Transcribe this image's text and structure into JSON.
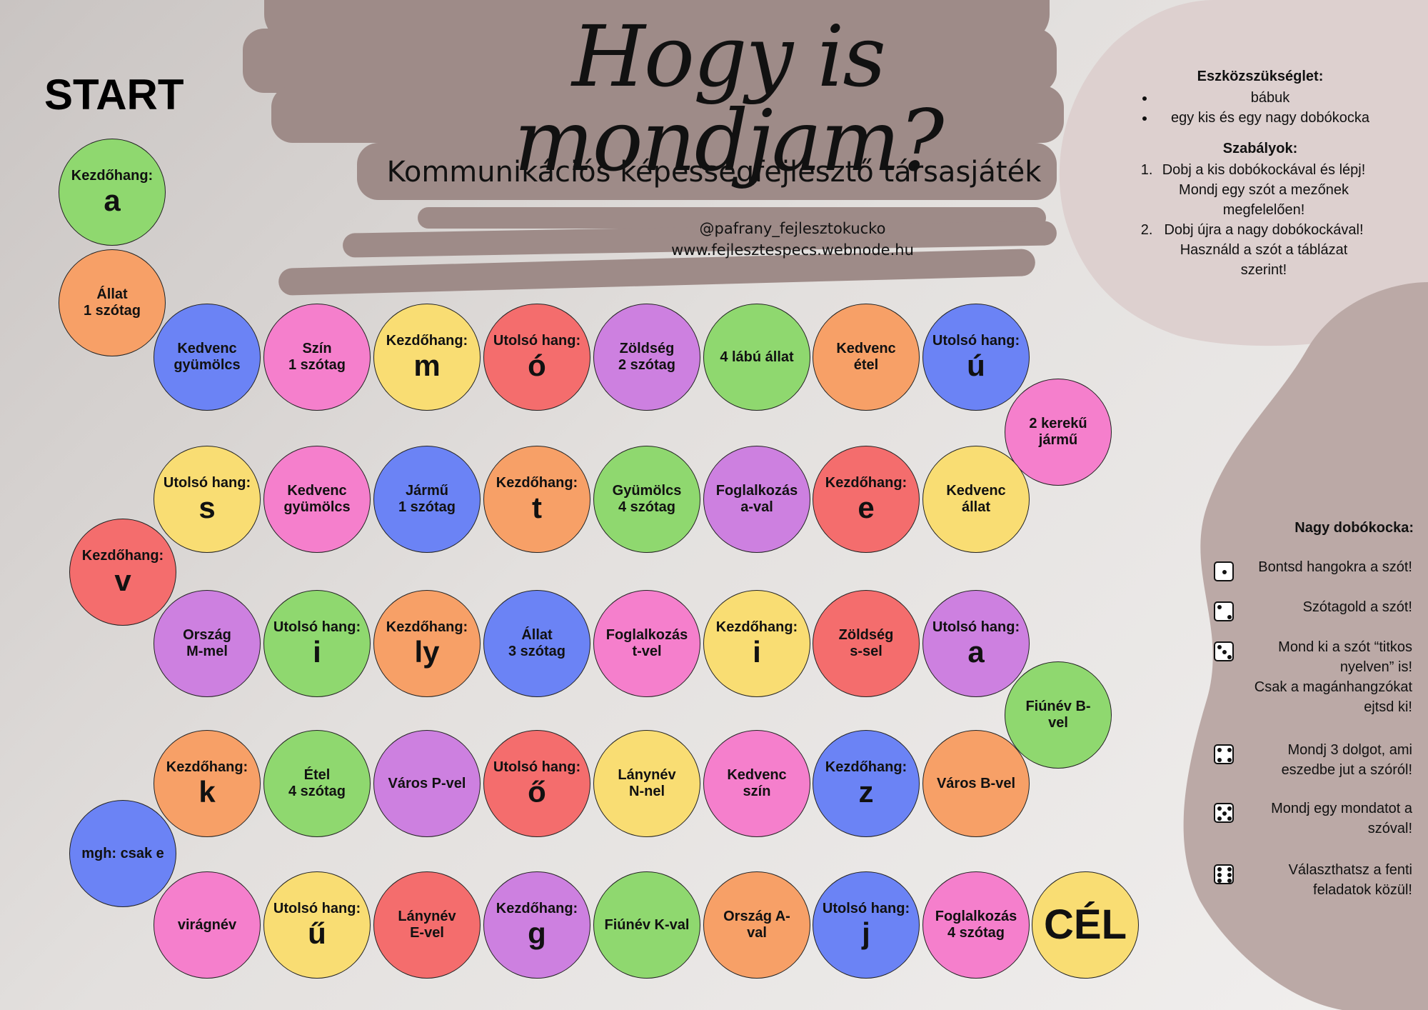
{
  "title": "Hogy is mondjam?",
  "subtitle": "Kommunikációs képességfejlesztő társasjáték",
  "contact": {
    "handle": "@pafrany_fejlesztokucko",
    "website": "www.fejlesztespecs.webnode.hu"
  },
  "start_label": "START",
  "colors": {
    "green": "#8fd86f",
    "orange": "#f7a067",
    "blue": "#6b83f5",
    "pink": "#f57fcc",
    "yellow": "#f9dd73",
    "red": "#f46d6d",
    "purple": "#cd80e0",
    "stroke": "#9e8b88",
    "blob_light": "#ddd0cf",
    "blob_dark": "#bba9a6"
  },
  "board": [
    {
      "lines": [
        "Kezdőhang:"
      ],
      "big": "a",
      "color": "green"
    },
    {
      "lines": [
        "Állat",
        "1 szótag"
      ],
      "color": "orange"
    },
    {
      "lines": [
        "Kedvenc",
        "gyümölcs"
      ],
      "color": "blue"
    },
    {
      "lines": [
        "Szín",
        "1 szótag"
      ],
      "color": "pink"
    },
    {
      "lines": [
        "Kezdőhang:"
      ],
      "big": "m",
      "color": "yellow"
    },
    {
      "lines": [
        "Utolsó hang:"
      ],
      "big": "ó",
      "color": "red"
    },
    {
      "lines": [
        "Zöldség",
        "2 szótag"
      ],
      "color": "purple"
    },
    {
      "lines": [
        "4 lábú állat"
      ],
      "color": "green"
    },
    {
      "lines": [
        "Kedvenc",
        "étel"
      ],
      "color": "orange"
    },
    {
      "lines": [
        "Utolsó hang:"
      ],
      "big": "ú",
      "color": "blue"
    },
    {
      "lines": [
        "2 kerekű",
        "jármű"
      ],
      "color": "pink"
    },
    {
      "lines": [
        "Kedvenc",
        "állat"
      ],
      "color": "yellow"
    },
    {
      "lines": [
        "Kezdőhang:"
      ],
      "big": "e",
      "color": "red"
    },
    {
      "lines": [
        "Foglalkozás",
        "a-val"
      ],
      "color": "purple"
    },
    {
      "lines": [
        "Gyümölcs",
        "4 szótag"
      ],
      "color": "green"
    },
    {
      "lines": [
        "Kezdőhang:"
      ],
      "big": "t",
      "color": "orange"
    },
    {
      "lines": [
        "Jármű",
        "1 szótag"
      ],
      "color": "blue"
    },
    {
      "lines": [
        "Kedvenc",
        "gyümölcs"
      ],
      "color": "pink"
    },
    {
      "lines": [
        "Utolsó hang:"
      ],
      "big": "s",
      "color": "yellow"
    },
    {
      "lines": [
        "Kezdőhang:"
      ],
      "big": "v",
      "color": "red"
    },
    {
      "lines": [
        "Ország",
        "M-mel"
      ],
      "color": "purple"
    },
    {
      "lines": [
        "Utolsó hang:"
      ],
      "big": "i",
      "color": "green"
    },
    {
      "lines": [
        "Kezdőhang:"
      ],
      "big": "ly",
      "color": "orange"
    },
    {
      "lines": [
        "Állat",
        "3 szótag"
      ],
      "color": "blue"
    },
    {
      "lines": [
        "Foglalkozás",
        "t-vel"
      ],
      "color": "pink"
    },
    {
      "lines": [
        "Kezdőhang:"
      ],
      "big": "i",
      "color": "yellow"
    },
    {
      "lines": [
        "Zöldség",
        "s-sel"
      ],
      "color": "red"
    },
    {
      "lines": [
        "Utolsó hang:"
      ],
      "big": "a",
      "color": "purple"
    },
    {
      "lines": [
        "Fiúnév B-",
        "vel"
      ],
      "color": "green"
    },
    {
      "lines": [
        "Város B-vel"
      ],
      "color": "orange"
    },
    {
      "lines": [
        "Kezdőhang:"
      ],
      "big": "z",
      "color": "blue"
    },
    {
      "lines": [
        "Kedvenc",
        "szín"
      ],
      "color": "pink"
    },
    {
      "lines": [
        "Lánynév",
        "N-nel"
      ],
      "color": "yellow"
    },
    {
      "lines": [
        "Utolsó hang:"
      ],
      "big": "ő",
      "color": "red"
    },
    {
      "lines": [
        "Város P-vel"
      ],
      "color": "purple"
    },
    {
      "lines": [
        "Étel",
        "4 szótag"
      ],
      "color": "green"
    },
    {
      "lines": [
        "Kezdőhang:"
      ],
      "big": "k",
      "color": "orange"
    },
    {
      "lines": [
        "mgh: csak e"
      ],
      "color": "blue"
    },
    {
      "lines": [
        "virágnév"
      ],
      "color": "pink"
    },
    {
      "lines": [
        "Utolsó hang:"
      ],
      "big": "ű",
      "color": "yellow"
    },
    {
      "lines": [
        "Lánynév",
        "E-vel"
      ],
      "color": "red"
    },
    {
      "lines": [
        "Kezdőhang:"
      ],
      "big": "g",
      "color": "purple"
    },
    {
      "lines": [
        "Fiúnév K-val"
      ],
      "color": "green"
    },
    {
      "lines": [
        "Ország A-",
        "val"
      ],
      "color": "orange"
    },
    {
      "lines": [
        "Utolsó hang:"
      ],
      "big": "j",
      "color": "blue"
    },
    {
      "lines": [
        "Foglalkozás",
        "4 szótag"
      ],
      "color": "pink"
    },
    {
      "lines": [],
      "big": "CÉL",
      "color": "yellow",
      "goal": true
    }
  ],
  "equipment": {
    "heading": "Eszközszükséglet:",
    "items": [
      "bábuk",
      "egy kis és egy nagy dobókocka"
    ]
  },
  "rules": {
    "heading": "Szabályok:",
    "items": [
      "Dobj a kis dobókockával és lépj! Mondj egy szót a mezőnek megfelelően!",
      "Dobj újra a nagy dobókockával! Használd a szót a táblázat szerint!"
    ]
  },
  "big_die": {
    "heading": "Nagy dobókocka:",
    "items": [
      {
        "pips": 1,
        "text": [
          "Bontsd hangokra a szót!"
        ]
      },
      {
        "pips": 2,
        "text": [
          "Szótagold a szót!"
        ]
      },
      {
        "pips": 3,
        "text": [
          "Mond ki a szót “titkos",
          "nyelven” is!",
          "Csak a magánhangzókat",
          "ejtsd ki!"
        ]
      },
      {
        "pips": 4,
        "text": [
          "Mondj 3 dolgot, ami",
          "eszedbe jut a szóról!"
        ]
      },
      {
        "pips": 5,
        "text": [
          "Mondj egy mondatot a",
          "szóval!"
        ]
      },
      {
        "pips": 6,
        "text": [
          "Választhatsz a fenti",
          "feladatok közül!"
        ]
      }
    ]
  }
}
